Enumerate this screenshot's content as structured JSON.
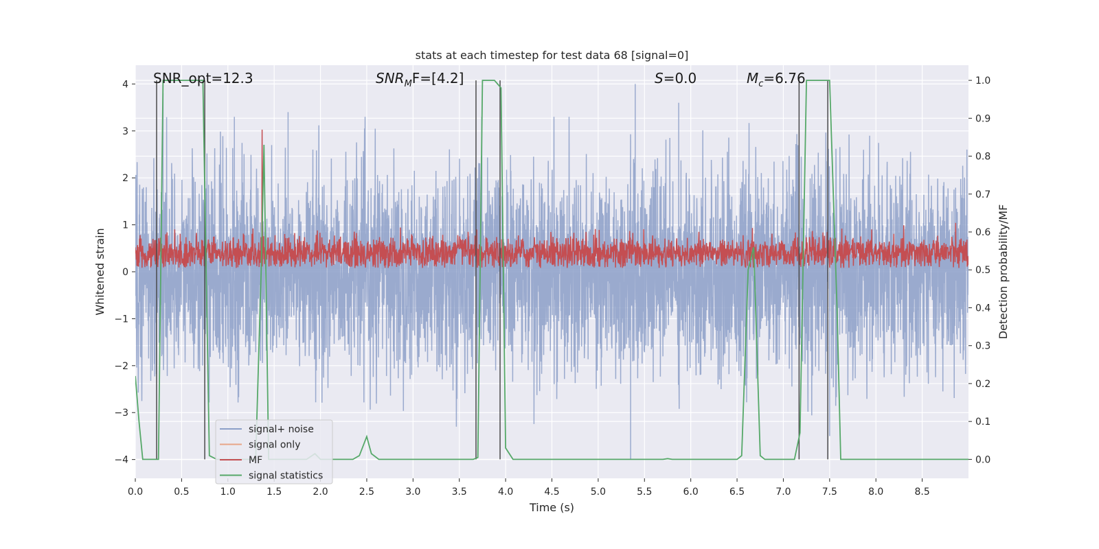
{
  "chart_data": {
    "type": "line",
    "title": "stats at each timestep for test data 68 [signal=0]",
    "xlabel": "Time (s)",
    "ylabel_left": "Whitened strain",
    "ylabel_right": "Detection probability/MF",
    "xlim": [
      0.0,
      9.0
    ],
    "ylim_left": [
      -4.4,
      4.4
    ],
    "ylim_right": [
      -0.05,
      1.04
    ],
    "x_ticks": [
      "0.0",
      "0.5",
      "1.0",
      "1.5",
      "2.0",
      "2.5",
      "3.0",
      "3.5",
      "4.0",
      "4.5",
      "5.0",
      "5.5",
      "6.0",
      "6.5",
      "7.0",
      "7.5",
      "8.0",
      "8.5"
    ],
    "y_ticks_left": [
      "4",
      "3",
      "2",
      "1",
      "0",
      "−1",
      "−2",
      "−3",
      "−4"
    ],
    "y_ticks_right": [
      "1.0",
      "0.9",
      "0.8",
      "0.7",
      "0.6",
      "0.5",
      "0.4",
      "0.3",
      "0.2",
      "0.1",
      "0.0"
    ],
    "annotations": {
      "snr_opt": "SNR_opt=12.3",
      "snr_mf_prefix": "SNR",
      "snr_mf_sub": "M",
      "snr_mf_suffix": "F=[4.2]",
      "s_prefix": "S",
      "s_suffix": "=0.0",
      "mc_prefix": "M",
      "mc_sub": "c",
      "mc_suffix": "=6.76"
    },
    "grid": true,
    "legend_placement": "lower-left",
    "series": [
      {
        "name": "signal+ noise",
        "color": "#8c9fc8",
        "style": "dense noise, whitened strain roughly within ±2.5 with peaks to ±3.5",
        "peaks": [
          {
            "x": 0.3,
            "y": 3.8
          },
          {
            "x": 1.07,
            "y": 3.3
          },
          {
            "x": 1.65,
            "y": 3.4
          },
          {
            "x": 5.4,
            "y": 4.0
          },
          {
            "x": 5.87,
            "y": 3.6
          },
          {
            "x": 7.5,
            "y": -3.5
          },
          {
            "x": 5.35,
            "y": -4.0
          }
        ]
      },
      {
        "name": "signal only",
        "color": "#e8a587",
        "values": []
      },
      {
        "name": "MF",
        "color": "#c44e52",
        "style": "noisy band on right axis between about 0.5 and 0.6, peaks near 0.87 at x=1.37"
      },
      {
        "name": "signal statistics",
        "color": "#55a868",
        "points": [
          [
            0.0,
            0.22
          ],
          [
            0.04,
            0.1
          ],
          [
            0.08,
            0.0
          ],
          [
            0.25,
            0.0
          ],
          [
            0.3,
            1.0
          ],
          [
            0.73,
            1.0
          ],
          [
            0.8,
            0.01
          ],
          [
            0.88,
            0.0
          ],
          [
            1.3,
            0.0
          ],
          [
            1.36,
            0.5
          ],
          [
            1.39,
            0.83
          ],
          [
            1.44,
            0.0
          ],
          [
            1.85,
            0.0
          ],
          [
            1.94,
            0.015
          ],
          [
            2.0,
            0.0
          ],
          [
            2.35,
            0.0
          ],
          [
            2.42,
            0.01
          ],
          [
            2.5,
            0.06
          ],
          [
            2.55,
            0.015
          ],
          [
            2.63,
            0.0
          ],
          [
            3.65,
            0.0
          ],
          [
            3.7,
            0.005
          ],
          [
            3.75,
            1.0
          ],
          [
            3.88,
            1.0
          ],
          [
            3.95,
            0.98
          ],
          [
            4.0,
            0.03
          ],
          [
            4.08,
            0.0
          ],
          [
            5.7,
            0.0
          ],
          [
            5.75,
            0.002
          ],
          [
            5.8,
            0.0
          ],
          [
            6.5,
            0.0
          ],
          [
            6.55,
            0.01
          ],
          [
            6.62,
            0.5
          ],
          [
            6.68,
            0.56
          ],
          [
            6.75,
            0.01
          ],
          [
            6.8,
            0.0
          ],
          [
            7.12,
            0.0
          ],
          [
            7.18,
            0.07
          ],
          [
            7.25,
            1.0
          ],
          [
            7.5,
            1.0
          ],
          [
            7.58,
            0.4
          ],
          [
            7.62,
            0.0
          ],
          [
            9.0,
            0.0
          ]
        ]
      }
    ],
    "vertical_markers": [
      0.23,
      0.75,
      3.68,
      3.94,
      7.17,
      7.48
    ],
    "colors": {
      "plot_bg": "#eaeaf2",
      "grid": "#ffffff",
      "noise": "#8c9fc8",
      "mf": "#c44e52",
      "stats": "#55a868",
      "signal_only": "#e8a587",
      "marker": "#4a4a4a"
    }
  }
}
